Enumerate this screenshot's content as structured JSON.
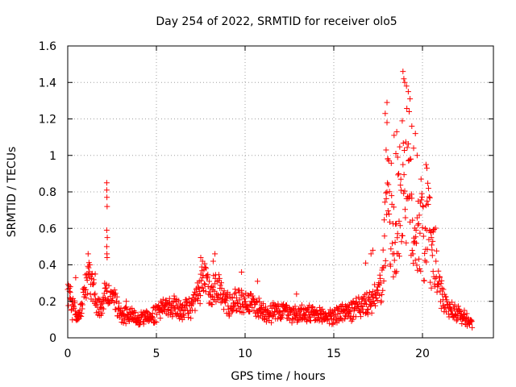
{
  "chart_data": {
    "type": "scatter",
    "title": "Day 254 of 2022, SRMTID for receiver olo5",
    "xlabel": "GPS time / hours",
    "ylabel": "SRMTID / TECUs",
    "xlim": [
      0,
      24
    ],
    "ylim": [
      0,
      1.6
    ],
    "grid": true,
    "marker": "+",
    "x_ticks": [
      0,
      5,
      10,
      15,
      20
    ],
    "x_tick_labels": [
      "0",
      "5",
      "10",
      "15",
      "20"
    ],
    "y_ticks": [
      0,
      0.2,
      0.4,
      0.6,
      0.8,
      1.0,
      1.2,
      1.4,
      1.6
    ],
    "y_tick_labels": [
      "0",
      "0.2",
      "0.4",
      "0.6",
      "0.8",
      "1",
      "1.2",
      "1.4",
      "1.6"
    ],
    "series": [
      {
        "name": "SRMTID",
        "color": "#ff0000",
        "anchors": [
          [
            0.0,
            0.25
          ],
          [
            0.2,
            0.17
          ],
          [
            0.4,
            0.14
          ],
          [
            0.6,
            0.12
          ],
          [
            0.8,
            0.18
          ],
          [
            1.0,
            0.28
          ],
          [
            1.2,
            0.32
          ],
          [
            1.4,
            0.28
          ],
          [
            1.6,
            0.2
          ],
          [
            1.8,
            0.16
          ],
          [
            2.0,
            0.18
          ],
          [
            2.2,
            0.3
          ],
          [
            2.4,
            0.22
          ],
          [
            2.6,
            0.22
          ],
          [
            2.8,
            0.16
          ],
          [
            3.0,
            0.12
          ],
          [
            3.4,
            0.13
          ],
          [
            3.8,
            0.11
          ],
          [
            4.2,
            0.1
          ],
          [
            4.6,
            0.12
          ],
          [
            5.0,
            0.14
          ],
          [
            5.5,
            0.17
          ],
          [
            6.0,
            0.17
          ],
          [
            6.5,
            0.15
          ],
          [
            7.0,
            0.17
          ],
          [
            7.4,
            0.24
          ],
          [
            7.7,
            0.33
          ],
          [
            8.0,
            0.26
          ],
          [
            8.4,
            0.29
          ],
          [
            8.8,
            0.21
          ],
          [
            9.2,
            0.18
          ],
          [
            9.6,
            0.21
          ],
          [
            10.0,
            0.2
          ],
          [
            10.5,
            0.18
          ],
          [
            11.0,
            0.15
          ],
          [
            11.5,
            0.14
          ],
          [
            12.0,
            0.15
          ],
          [
            12.5,
            0.14
          ],
          [
            13.0,
            0.13
          ],
          [
            13.5,
            0.13
          ],
          [
            14.0,
            0.12
          ],
          [
            14.5,
            0.12
          ],
          [
            15.0,
            0.12
          ],
          [
            15.5,
            0.14
          ],
          [
            16.0,
            0.15
          ],
          [
            16.5,
            0.17
          ],
          [
            17.0,
            0.19
          ],
          [
            17.4,
            0.22
          ],
          [
            17.7,
            0.28
          ],
          [
            17.9,
            0.55
          ],
          [
            18.1,
            0.75
          ],
          [
            18.3,
            0.62
          ],
          [
            18.5,
            0.5
          ],
          [
            18.7,
            0.72
          ],
          [
            18.9,
            0.95
          ],
          [
            19.1,
            0.88
          ],
          [
            19.3,
            0.72
          ],
          [
            19.5,
            0.6
          ],
          [
            19.7,
            0.58
          ],
          [
            19.9,
            0.62
          ],
          [
            20.1,
            0.52
          ],
          [
            20.3,
            0.7
          ],
          [
            20.5,
            0.42
          ],
          [
            20.7,
            0.45
          ],
          [
            20.9,
            0.28
          ],
          [
            21.2,
            0.2
          ],
          [
            21.6,
            0.15
          ],
          [
            22.0,
            0.13
          ],
          [
            22.4,
            0.11
          ],
          [
            22.8,
            0.08
          ]
        ],
        "spikes": [
          [
            0.15,
            0.28
          ],
          [
            0.45,
            0.33
          ],
          [
            1.15,
            0.46
          ],
          [
            1.25,
            0.4
          ],
          [
            1.55,
            0.35
          ],
          [
            2.2,
            0.85
          ],
          [
            2.2,
            0.81
          ],
          [
            2.21,
            0.77
          ],
          [
            2.22,
            0.72
          ],
          [
            2.2,
            0.59
          ],
          [
            2.23,
            0.55
          ],
          [
            2.2,
            0.5
          ],
          [
            2.21,
            0.46
          ],
          [
            2.22,
            0.44
          ],
          [
            3.3,
            0.2
          ],
          [
            7.6,
            0.42
          ],
          [
            7.5,
            0.44
          ],
          [
            8.3,
            0.46
          ],
          [
            8.2,
            0.42
          ],
          [
            9.8,
            0.36
          ],
          [
            10.7,
            0.31
          ],
          [
            12.9,
            0.24
          ],
          [
            16.8,
            0.41
          ],
          [
            17.1,
            0.46
          ],
          [
            17.2,
            0.48
          ],
          [
            17.9,
            1.23
          ],
          [
            18.0,
            1.29
          ],
          [
            18.0,
            1.18
          ],
          [
            17.95,
            1.03
          ],
          [
            18.05,
            0.98
          ],
          [
            18.4,
            1.11
          ],
          [
            18.5,
            1.01
          ],
          [
            18.6,
            0.99
          ],
          [
            18.55,
            1.13
          ],
          [
            18.9,
            1.46
          ],
          [
            18.95,
            1.42
          ],
          [
            19.0,
            1.4
          ],
          [
            19.1,
            1.38
          ],
          [
            19.2,
            1.35
          ],
          [
            19.3,
            1.31
          ],
          [
            19.25,
            1.24
          ],
          [
            19.4,
            1.16
          ],
          [
            19.6,
            1.12
          ],
          [
            19.5,
            1.04
          ],
          [
            19.7,
            1.0
          ],
          [
            20.2,
            0.95
          ],
          [
            20.25,
            0.93
          ],
          [
            20.5,
            0.55
          ],
          [
            20.6,
            0.58
          ]
        ]
      }
    ]
  }
}
